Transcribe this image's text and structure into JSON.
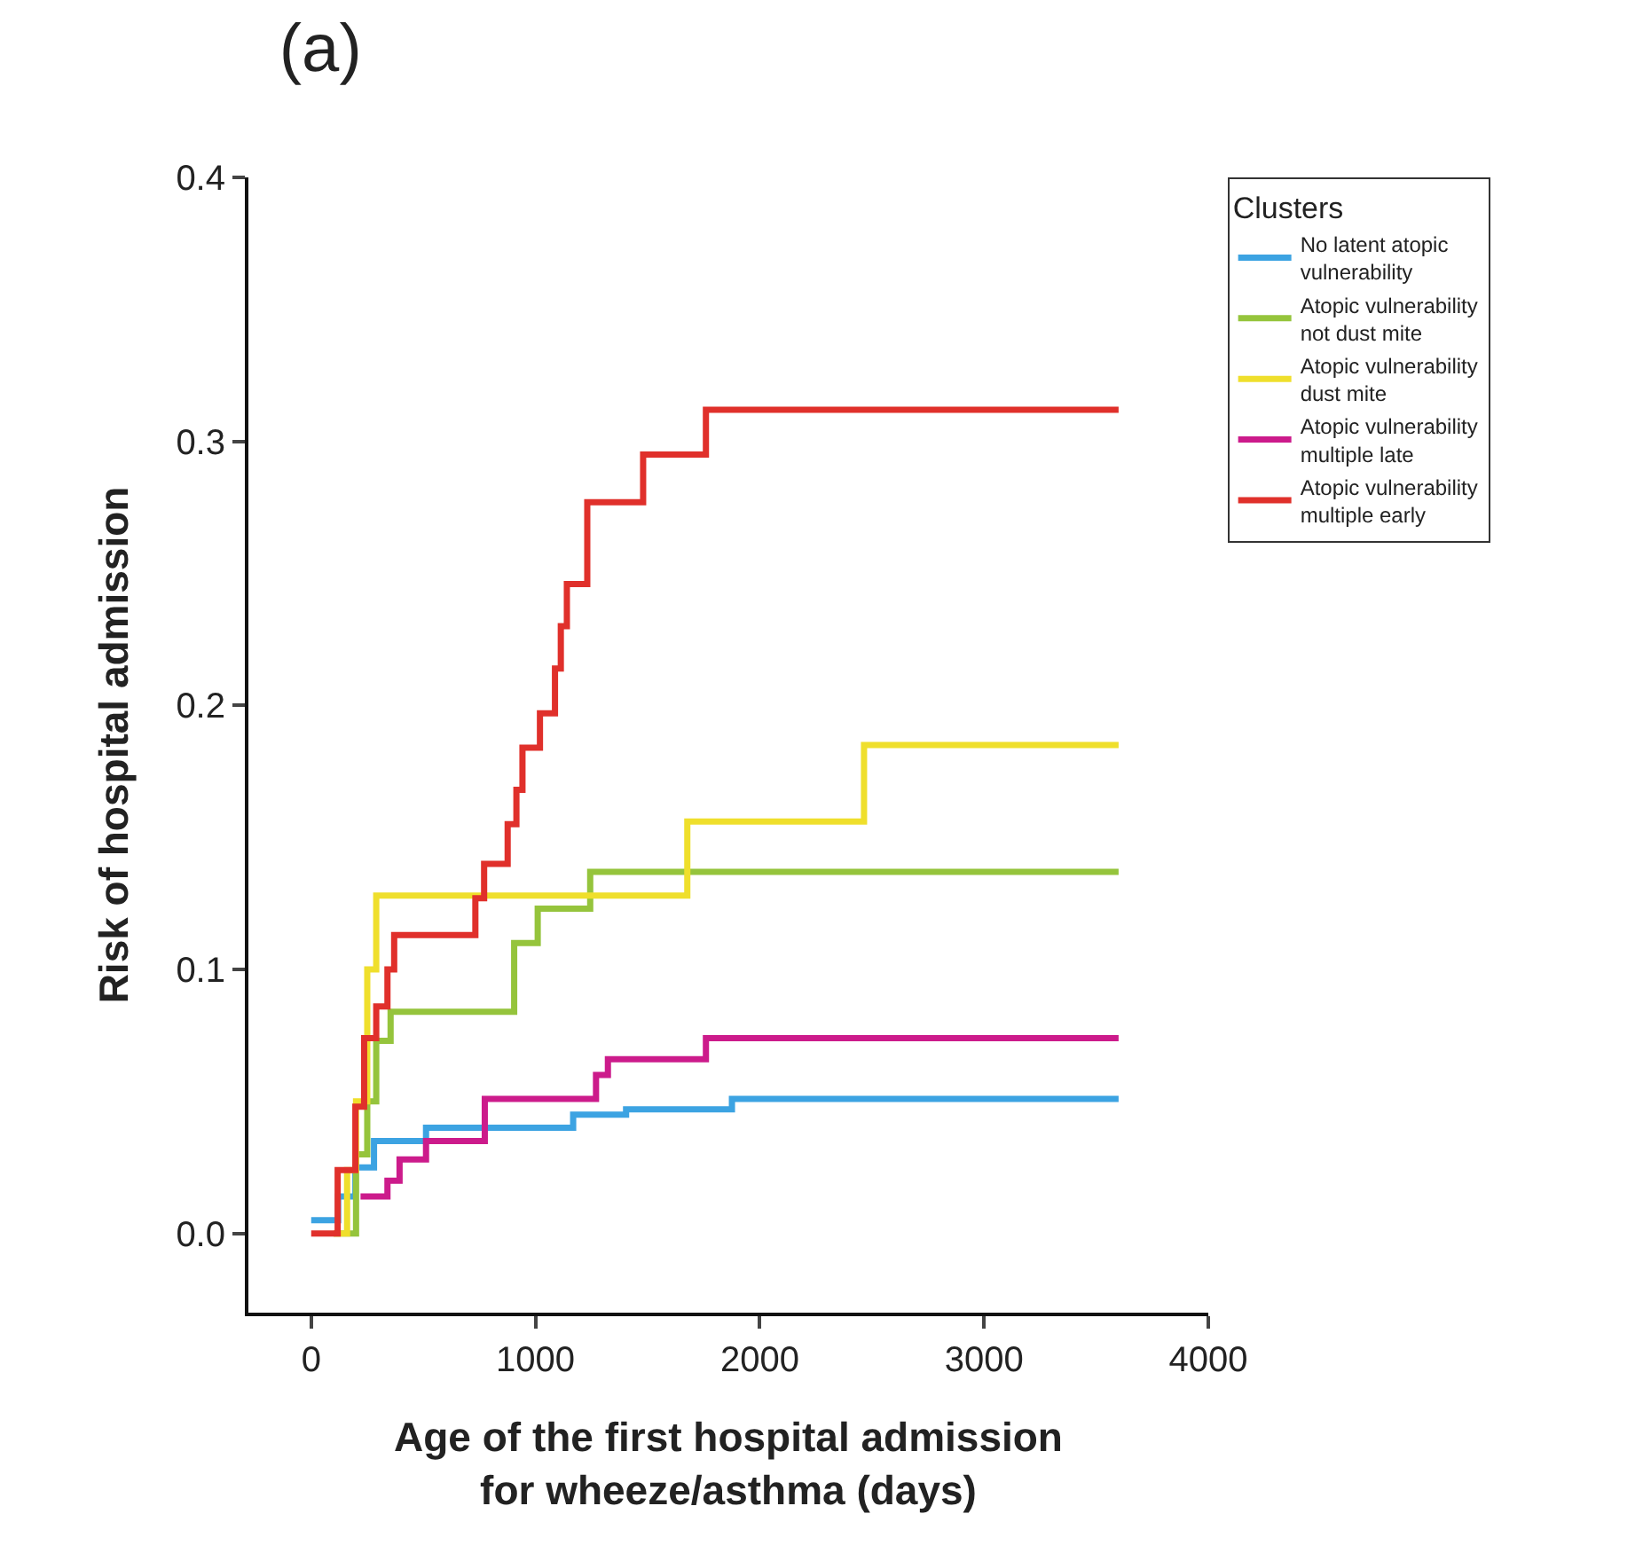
{
  "chart_data": {
    "type": "step",
    "title": "(a)",
    "xlabel": "Age of the first hospital admission for wheeze/asthma (days)",
    "ylabel": "Risk of hospital admission",
    "legend_title": "Clusters",
    "legend": "top right",
    "grid": false,
    "xlim": [
      -280,
      4000
    ],
    "xticks": [
      0,
      1000,
      2000,
      3000,
      4000
    ],
    "ylim": [
      -0.03,
      0.4
    ],
    "yticks": [
      {
        "value": 0,
        "label": "0.0"
      },
      0.1,
      0.2,
      0.3,
      0.4
    ],
    "series": [
      {
        "name": "No latent atopic vulnerability",
        "color": "#3ca3e2",
        "x": [
          0,
          120,
          197,
          280,
          512,
          1168,
          1404,
          1876,
          3600
        ],
        "values": [
          0.005,
          0.014,
          0.025,
          0.035,
          0.04,
          0.045,
          0.047,
          0.051,
          0.051
        ]
      },
      {
        "name": "Atopic vulnerability not dust mite",
        "color": "#95c43c",
        "x": [
          100,
          200,
          250,
          290,
          354,
          905,
          1010,
          1244,
          3600
        ],
        "values": [
          0,
          0.03,
          0.05,
          0.073,
          0.084,
          0.11,
          0.123,
          0.137,
          0.137
        ]
      },
      {
        "name": "Atopic vulnerability dust mite",
        "color": "#efdf2c",
        "x": [
          100,
          160,
          200,
          250,
          290,
          1677,
          2465,
          3600
        ],
        "values": [
          0,
          0.024,
          0.05,
          0.1,
          0.128,
          0.156,
          0.185,
          0.185
        ]
      },
      {
        "name": "Atopic vulnerability multiple late",
        "color": "#cc1b8b",
        "x": [
          220,
          340,
          394,
          512,
          774,
          1270,
          1323,
          1760,
          3600
        ],
        "values": [
          0.014,
          0.02,
          0.028,
          0.035,
          0.051,
          0.06,
          0.066,
          0.074,
          0.074
        ]
      },
      {
        "name": "Atopic vulnerability multiple early",
        "color": "#e0302b",
        "x": [
          0,
          118,
          197,
          236,
          290,
          340,
          370,
          732,
          771,
          876,
          915,
          942,
          1020,
          1087,
          1113,
          1140,
          1231,
          1480,
          1760,
          3600
        ],
        "values": [
          0,
          0.024,
          0.048,
          0.074,
          0.086,
          0.1,
          0.113,
          0.127,
          0.14,
          0.155,
          0.168,
          0.184,
          0.197,
          0.214,
          0.23,
          0.246,
          0.277,
          0.295,
          0.312,
          0.312
        ]
      }
    ]
  }
}
